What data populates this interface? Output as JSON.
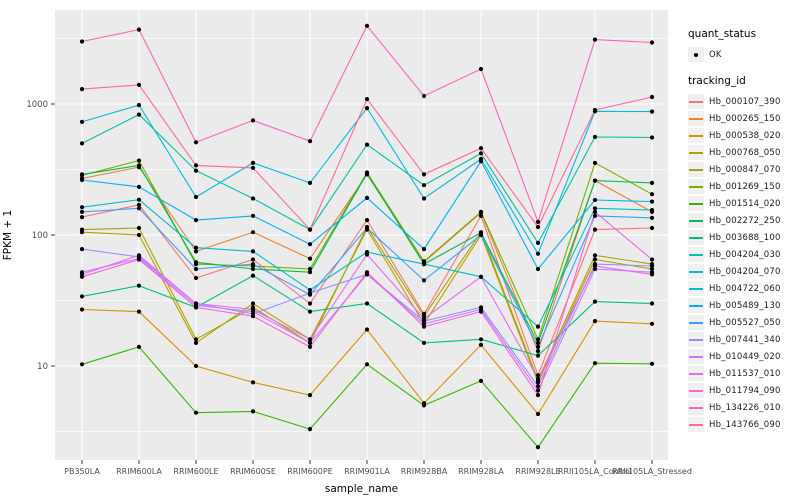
{
  "chart_data": {
    "type": "line",
    "title": "",
    "xlabel": "sample_name",
    "ylabel": "FPKM + 1",
    "yscale": "log10",
    "yticks": [
      10,
      100,
      1000
    ],
    "ylim": [
      1.9,
      5200
    ],
    "grid": "white major+minor on grey panel, legend right",
    "point_symbol": "black dot on every vertex",
    "categories": [
      "PB350LA",
      "RRIM600LA",
      "RRIM600LE",
      "RRIM600SE",
      "RRIM600PE",
      "RRIM901LA",
      "RRIM928BA",
      "RRIM928LA",
      "RRIM928LE",
      "RRII105LA_Control",
      "RRII105LA_Stressed"
    ],
    "series": [
      {
        "name": "Hb_000107_390",
        "color": "#F8766D",
        "values": [
          137,
          170,
          47,
          65,
          30,
          130,
          25,
          140,
          8.5,
          110,
          113
        ]
      },
      {
        "name": "Hb_000265_150",
        "color": "#EA8331",
        "values": [
          270,
          330,
          75,
          105,
          66,
          290,
          62,
          148,
          13,
          260,
          150
        ]
      },
      {
        "name": "Hb_000538_020",
        "color": "#D89000",
        "values": [
          27,
          26,
          10,
          7.5,
          6,
          19,
          5.2,
          14.5,
          4.3,
          22,
          21
        ]
      },
      {
        "name": "Hb_000768_050",
        "color": "#C09B00",
        "values": [
          105,
          100,
          15,
          30,
          16,
          110,
          21,
          100,
          7.5,
          65,
          55
        ]
      },
      {
        "name": "Hb_000847_070",
        "color": "#A3A500",
        "values": [
          110,
          113,
          16,
          28,
          15,
          115,
          24,
          105,
          7.8,
          70,
          60
        ]
      },
      {
        "name": "Hb_001269_150",
        "color": "#7CAE00",
        "values": [
          285,
          370,
          60,
          58,
          55,
          300,
          63,
          150,
          16,
          355,
          205
        ]
      },
      {
        "name": "Hb_001514_020",
        "color": "#39B600",
        "values": [
          10.3,
          14,
          4.4,
          4.5,
          3.3,
          10.3,
          5,
          7.7,
          2.4,
          10.5,
          10.4
        ]
      },
      {
        "name": "Hb_002272_250",
        "color": "#00BB4E",
        "values": [
          290,
          340,
          62,
          55,
          52,
          295,
          60,
          104,
          15,
          260,
          250
        ]
      },
      {
        "name": "Hb_003688_100",
        "color": "#00BF7D",
        "values": [
          34,
          41,
          28,
          49,
          26,
          30,
          15,
          16,
          12,
          31,
          30
        ]
      },
      {
        "name": "Hb_004204_030",
        "color": "#00C1A3",
        "values": [
          500,
          830,
          310,
          190,
          110,
          490,
          240,
          420,
          87,
          560,
          555
        ]
      },
      {
        "name": "Hb_004204_070",
        "color": "#00BFC4",
        "values": [
          163,
          186,
          80,
          75,
          38,
          74,
          60,
          48,
          20,
          160,
          155
        ]
      },
      {
        "name": "Hb_004722_060",
        "color": "#00BAE0",
        "values": [
          730,
          980,
          195,
          355,
          250,
          930,
          190,
          380,
          72,
          880,
          875
        ]
      },
      {
        "name": "Hb_005489_130",
        "color": "#00B0F6",
        "values": [
          263,
          233,
          130,
          140,
          85,
          192,
          78,
          365,
          55,
          185,
          180
        ]
      },
      {
        "name": "Hb_005527_050",
        "color": "#35A2FF",
        "values": [
          150,
          160,
          55,
          60,
          35,
          113,
          45,
          100,
          14,
          140,
          135
        ]
      },
      {
        "name": "Hb_007441_340",
        "color": "#9590FF",
        "values": [
          78,
          68,
          30,
          25,
          36,
          50,
          22,
          28,
          7,
          60,
          58
        ]
      },
      {
        "name": "Hb_010449_020",
        "color": "#C77CFF",
        "values": [
          52,
          66,
          29,
          26,
          15,
          50,
          21,
          27,
          6.5,
          55,
          52
        ]
      },
      {
        "name": "Hb_011537_010",
        "color": "#E76BF3",
        "values": [
          50,
          70,
          30,
          27,
          16,
          71,
          23,
          48,
          8,
          58,
          50
        ]
      },
      {
        "name": "Hb_011794_090",
        "color": "#FA62DB",
        "values": [
          48,
          65,
          28,
          24,
          14,
          52,
          20,
          26,
          6,
          150,
          65
        ]
      },
      {
        "name": "Hb_134226_010",
        "color": "#FF62BC",
        "values": [
          3000,
          3700,
          510,
          750,
          520,
          3950,
          1150,
          1850,
          126,
          3100,
          2950
        ]
      },
      {
        "name": "Hb_143766_090",
        "color": "#FF6A98",
        "values": [
          1300,
          1400,
          340,
          325,
          110,
          1090,
          290,
          460,
          115,
          900,
          1130
        ]
      }
    ]
  },
  "legend": {
    "quant_status": {
      "title": "quant_status",
      "items": [
        {
          "label": "OK",
          "symbol": "black-point"
        }
      ]
    },
    "tracking_id": {
      "title": "tracking_id"
    }
  },
  "colors": {
    "panel_background": "#EBEBEB",
    "gridline": "#FFFFFF",
    "legend_key_background": "#F0F0F0",
    "axis_text": "#4D4D4D",
    "tick_mark": "#333333",
    "point": "#000000"
  }
}
